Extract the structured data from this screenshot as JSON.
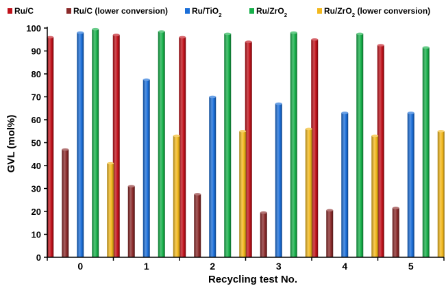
{
  "chart_data": {
    "type": "bar",
    "title": "",
    "xlabel": "Recycling test No.",
    "ylabel": "GVL (mol%)",
    "ylim": [
      0,
      100
    ],
    "yticks": [
      0,
      10,
      20,
      30,
      40,
      50,
      60,
      70,
      80,
      90,
      100
    ],
    "categories": [
      "0",
      "1",
      "2",
      "3",
      "4",
      "5"
    ],
    "legend_position": "top",
    "grid": false,
    "bar_style": "3d-cylinder",
    "series": [
      {
        "name": "Ru/C",
        "legend_parts": [
          {
            "t": "Ru/C"
          }
        ],
        "color": "#c0111a",
        "values": [
          96,
          97,
          96,
          94,
          95,
          92.5
        ]
      },
      {
        "name": "Ru/C (lower conversion)",
        "legend_parts": [
          {
            "t": "Ru/C (lower conversion)"
          }
        ],
        "color": "#8a2a2a",
        "values": [
          47,
          31,
          27.5,
          19.5,
          20.5,
          21.5
        ]
      },
      {
        "name": "Ru/TiO2",
        "legend_parts": [
          {
            "t": "Ru/TiO"
          },
          {
            "t": "2",
            "sub": true
          }
        ],
        "color": "#1a6ed8",
        "values": [
          98,
          77.5,
          70,
          67,
          63,
          63
        ]
      },
      {
        "name": "Ru/ZrO2",
        "legend_parts": [
          {
            "t": "Ru/ZrO"
          },
          {
            "t": "2",
            "sub": true
          }
        ],
        "color": "#17b04a",
        "values": [
          99.5,
          98.5,
          97.5,
          98,
          97.5,
          91.5
        ]
      },
      {
        "name": "Ru/ZrO2 (lower conversion)",
        "legend_parts": [
          {
            "t": "Ru/ZrO"
          },
          {
            "t": "2",
            "sub": true
          },
          {
            "t": " (lower conversion)"
          }
        ],
        "color": "#f2b81d",
        "values": [
          41,
          53,
          55,
          56,
          53,
          55
        ]
      }
    ]
  }
}
